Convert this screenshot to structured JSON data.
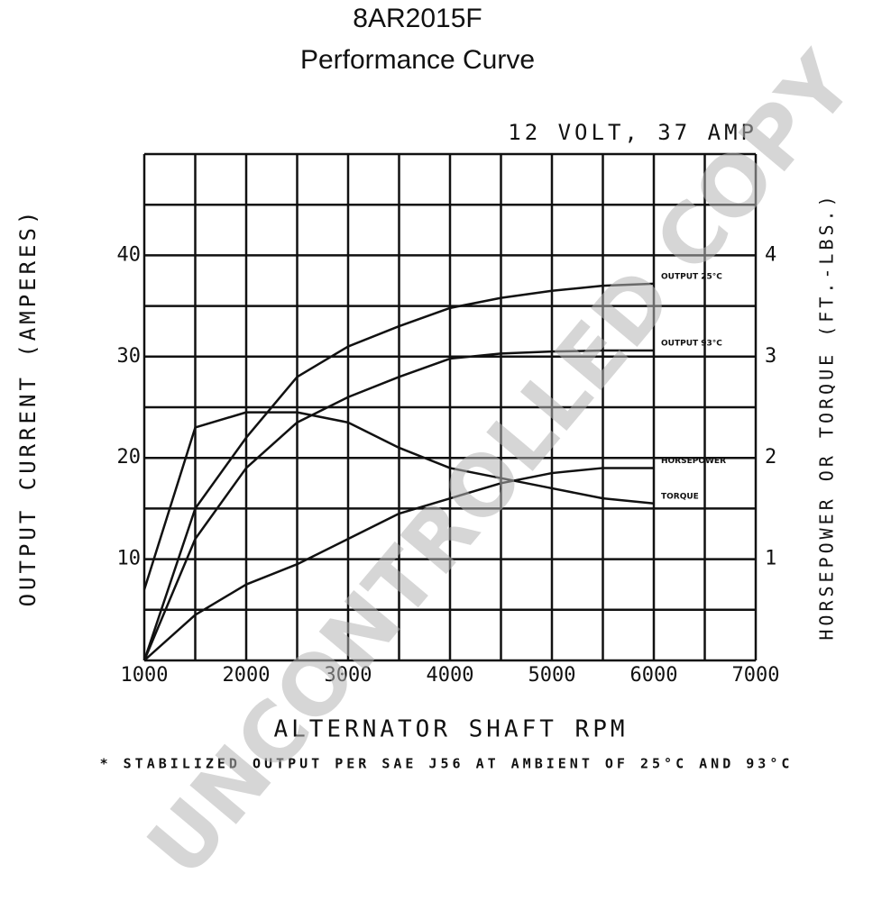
{
  "chart_data": {
    "type": "line",
    "title": "8AR2015F",
    "subtitle": "Performance Curve",
    "annotation": "12 VOLT, 37 AMP",
    "watermark": "UNCONTROLLED COPY",
    "ylabel": "OUTPUT CURRENT (AMPERES)",
    "y2label": "HORSEPOWER OR TORQUE (FT.-LBS.)",
    "xlabel": "ALTERNATOR SHAFT RPM",
    "footnote": "* STABILIZED OUTPUT PER SAE J56 AT AMBIENT OF 25°C AND 93°C",
    "x": [
      1000,
      1500,
      2000,
      2500,
      3000,
      3500,
      4000,
      4500,
      5000,
      5500,
      6000
    ],
    "series": [
      {
        "name": "OUTPUT 25°C",
        "color": "#111111",
        "values": [
          0,
          15,
          22,
          28,
          31,
          33,
          34.8,
          35.8,
          36.5,
          37,
          37.2
        ]
      },
      {
        "name": "OUTPUT 93°C",
        "color": "#111111",
        "values": [
          0,
          12,
          19,
          23.5,
          26,
          28,
          29.8,
          30.3,
          30.5,
          30.6,
          30.6
        ]
      },
      {
        "name": "HORSEPOWER",
        "color": "#111111",
        "axis": "y2",
        "values": [
          0,
          0.45,
          0.75,
          0.95,
          1.2,
          1.45,
          1.6,
          1.75,
          1.85,
          1.9,
          1.9
        ]
      },
      {
        "name": "TORQUE",
        "color": "#111111",
        "axis": "y2",
        "values": [
          0.7,
          2.3,
          2.45,
          2.45,
          2.35,
          2.1,
          1.9,
          1.8,
          1.7,
          1.6,
          1.55
        ]
      }
    ],
    "xlim": [
      1000,
      7000
    ],
    "xticks": [
      1000,
      2000,
      3000,
      4000,
      5000,
      6000,
      7000
    ],
    "xgrid": [
      1000,
      1500,
      2000,
      2500,
      3000,
      3500,
      4000,
      4500,
      5000,
      5500,
      6000,
      6500,
      7000
    ],
    "ylim": [
      0,
      50
    ],
    "yticks": [
      10,
      20,
      30,
      40
    ],
    "ygrid": [
      0,
      5,
      10,
      15,
      20,
      25,
      30,
      35,
      40,
      45,
      50
    ],
    "y2lim": [
      0,
      5
    ],
    "y2ticks": [
      1,
      2,
      3,
      4
    ],
    "grid": true
  }
}
